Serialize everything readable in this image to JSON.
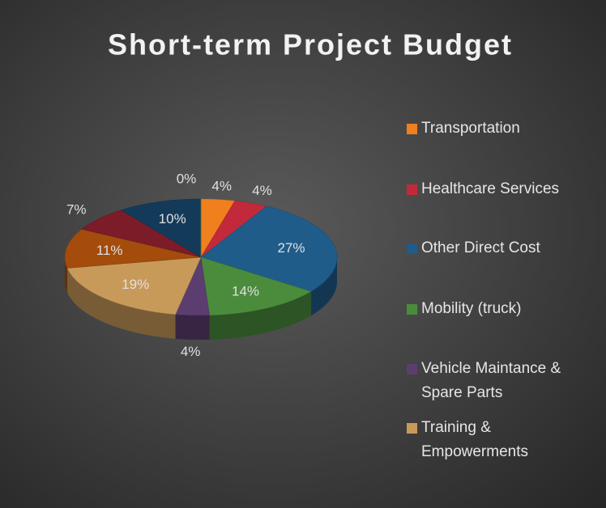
{
  "chart_data": {
    "type": "pie3d",
    "title": "Short-term Project Budget",
    "categories": [
      "Transportation",
      "Healthcare Services",
      "Other Direct Cost",
      "Mobility (truck)",
      "Vehicle Maintance & Spare Parts",
      "Training & Empowerments",
      null,
      null,
      null,
      null
    ],
    "values": [
      4,
      4,
      27,
      14,
      4,
      19,
      11,
      7,
      10,
      0
    ],
    "value_labels": [
      "4%",
      "4%",
      "27%",
      "14%",
      "4%",
      "19%",
      "11%",
      "7%",
      "10%",
      "0%"
    ],
    "colors": [
      "#f0801e",
      "#c22a3c",
      "#1f5c8a",
      "#4a8c3c",
      "#5c3d70",
      "#c89a5a",
      "#a34c0c",
      "#7c1c28",
      "#143a5a",
      "#7a8a3a"
    ],
    "legend": "right"
  }
}
